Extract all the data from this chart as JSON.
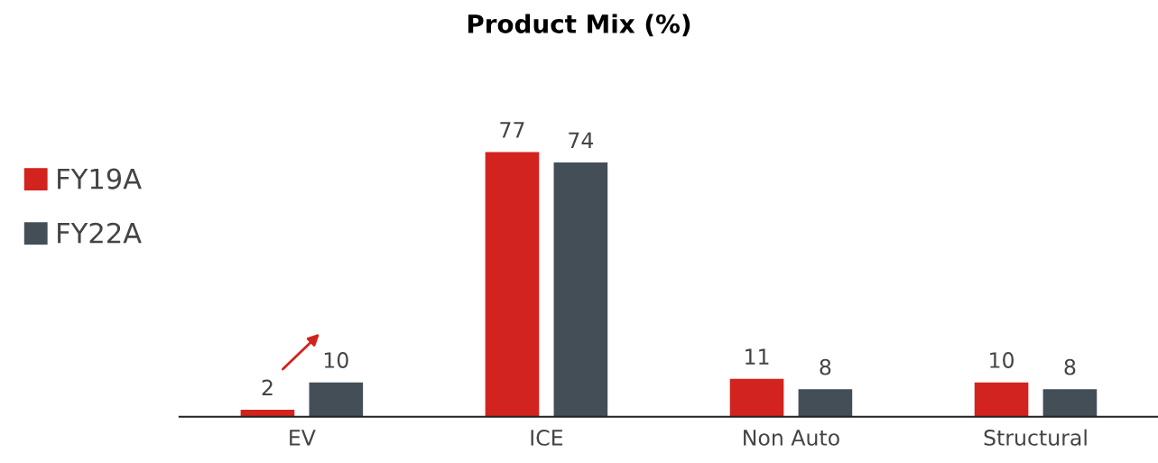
{
  "chart_data": {
    "type": "bar",
    "title": "Product Mix (%)",
    "categories": [
      "EV",
      "ICE",
      "Non Auto",
      "Structural"
    ],
    "series": [
      {
        "name": "FY19A",
        "color": "#d2231e",
        "values": [
          2,
          77,
          11,
          10
        ]
      },
      {
        "name": "FY22A",
        "color": "#444e57",
        "values": [
          10,
          74,
          8,
          8
        ]
      }
    ],
    "data_labels": true,
    "legend": "left",
    "grid": false
  }
}
